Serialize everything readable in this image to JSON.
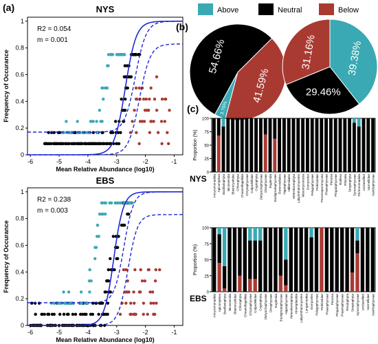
{
  "panel_labels": {
    "a": "(a)",
    "b": "(b)",
    "c": "(c)"
  },
  "colors": {
    "above": "#3aa9b4",
    "neutral": "#000000",
    "below": "#a93a32",
    "fit": "#1c26d6"
  },
  "legend": [
    {
      "key": "above",
      "label": "Above"
    },
    {
      "key": "neutral",
      "label": "Neutral"
    },
    {
      "key": "below",
      "label": "Below"
    }
  ],
  "chart_data": [
    {
      "type": "scatter",
      "title": "NYS",
      "xlabel": "Mean Relative Abundance (log10)",
      "ylabel": "Frequency of Occurance",
      "xlim": [
        -6.1,
        -0.7
      ],
      "ylim": [
        0,
        1.03
      ],
      "xticks": [
        -6,
        -5,
        -4,
        -3,
        -2,
        -1
      ],
      "yticks": [
        0,
        0.2,
        0.4,
        0.6,
        0.8,
        1
      ],
      "annotations": [
        "R2 = 0.054",
        "m = 0.001"
      ],
      "fit": {
        "center": -2.7,
        "slope": 2.3,
        "lower_band": 0.17,
        "upper_band": 0.83,
        "band_shift": 0.35
      },
      "point_summary": [
        {
          "class": "neutral",
          "x_range": [
            -5.5,
            -2.2
          ],
          "y_range": [
            0.05,
            0.75
          ]
        },
        {
          "class": "above",
          "x_range": [
            -4.9,
            -2.7
          ],
          "y_range": [
            0.15,
            0.72
          ]
        },
        {
          "class": "below",
          "x_range": [
            -2.6,
            -1.1
          ],
          "y_range": [
            0.08,
            0.55
          ]
        }
      ]
    },
    {
      "type": "scatter",
      "title": "EBS",
      "xlabel": "Mean Relative Abundance (log10)",
      "ylabel": "Frequency of Occurance",
      "xlim": [
        -6.1,
        -0.7
      ],
      "ylim": [
        0,
        1.03
      ],
      "xticks": [
        -6,
        -5,
        -4,
        -3,
        -2,
        -1
      ],
      "yticks": [
        0,
        0.2,
        0.4,
        0.6,
        0.8,
        1
      ],
      "annotations": [
        "R2 = 0.238",
        "m = 0.003"
      ],
      "fit": {
        "center": -3.1,
        "slope": 2.6,
        "lower_band": 0.17,
        "upper_band": 0.83,
        "band_shift": 0.35
      },
      "point_summary": [
        {
          "class": "neutral",
          "x_range": [
            -6.0,
            -2.4
          ],
          "y_range": [
            0.02,
            0.95
          ]
        },
        {
          "class": "above",
          "x_range": [
            -5.3,
            -2.4
          ],
          "y_range": [
            0.2,
            0.9
          ]
        },
        {
          "class": "below",
          "x_range": [
            -2.9,
            -1.5
          ],
          "y_range": [
            0.04,
            0.45
          ]
        }
      ]
    },
    {
      "type": "pie",
      "title": "NYS",
      "categories": [
        "Above",
        "Neutral",
        "Below"
      ],
      "values": [
        3.75,
        54.66,
        41.59
      ],
      "labels": [
        "3.75%",
        "54.66%",
        "41.59%"
      ]
    },
    {
      "type": "pie",
      "title": "EBS",
      "categories": [
        "Above",
        "Neutral",
        "Below"
      ],
      "values": [
        39.38,
        29.46,
        31.16
      ],
      "labels": [
        "39.38%",
        "29.46%",
        "31.16%"
      ]
    },
    {
      "type": "bar",
      "title": "NYS",
      "stacked": true,
      "ylabel": "Proportion (%)",
      "yticks": [
        0,
        25,
        50,
        75,
        100
      ],
      "categories": [
        "Ancyromonadida",
        "Apicomplexa",
        "Bacillariophyta",
        "Bicosoecida",
        "Blastocystidae",
        "Chlorophyta",
        "Choanoflagellida",
        "Chrysophyceae",
        "Colpodellidae",
        "Cryptophyta",
        "Dictyochophyceae",
        "Dinophyceae",
        "Euglenida",
        "Eustigmatophyceae",
        "Florenciellales",
        "Haptophyceae",
        "Hibberdiales",
        "Heterokontophyta",
        "Labyrinthulomycetes",
        "Mesomycetozoa",
        "Oomycetes",
        "Pelagophyceae",
        "Perkinsidae",
        "Peronosporomycota",
        "Phaeophyceae",
        "Picozoa",
        "Pinguiophyceae",
        "Rotifera",
        "Rhizaria",
        "Streptophyta",
        "Synurophyceae",
        "Trichomonadida",
        "unclassified",
        "Vannellidae",
        "Xanthophyceae"
      ],
      "series": [
        {
          "name": "Below",
          "values": [
            0,
            68,
            0,
            0,
            0,
            0,
            0,
            0,
            0,
            0,
            0,
            70,
            0,
            62,
            0,
            0,
            0,
            0,
            0,
            0,
            0,
            0,
            0,
            0,
            0,
            0,
            0,
            0,
            0,
            0,
            0,
            0,
            0,
            0,
            0
          ]
        },
        {
          "name": "Neutral",
          "values": [
            100,
            32,
            85,
            100,
            100,
            100,
            100,
            100,
            100,
            100,
            100,
            30,
            100,
            38,
            100,
            100,
            100,
            100,
            100,
            100,
            100,
            100,
            100,
            100,
            100,
            100,
            100,
            100,
            100,
            100,
            92,
            85,
            100,
            100,
            100
          ]
        },
        {
          "name": "Above",
          "values": [
            0,
            0,
            15,
            0,
            0,
            0,
            0,
            0,
            0,
            0,
            0,
            0,
            0,
            0,
            0,
            0,
            0,
            0,
            0,
            0,
            0,
            0,
            0,
            0,
            0,
            0,
            0,
            0,
            0,
            0,
            8,
            15,
            0,
            0,
            0
          ]
        }
      ]
    },
    {
      "type": "bar",
      "title": "EBS",
      "stacked": true,
      "ylabel": "Proportion (%)",
      "yticks": [
        0,
        25,
        50,
        75,
        100
      ],
      "categories": [
        "Ancyromonadida",
        "Apicomplexa",
        "Bacillariophyta",
        "Bicosoecida",
        "Blastocystidae",
        "Chlorophyta",
        "Choanoflagellida",
        "Chrysophyceae",
        "Colpodellidae",
        "Cryptophyta",
        "Dictyochophyceae",
        "Dinophyceae",
        "Euglenida",
        "Eustigmatophyceae",
        "Haptophyceae",
        "Heterokontophyta",
        "Kinetoplastida",
        "Labyrinthulomycetes",
        "Longamoebia",
        "Oomycetes",
        "Pelagophyceae",
        "Perkinsidae",
        "Phaeophyceae",
        "Picozoa",
        "Pinguiophyceae",
        "Prasinophyceae",
        "Rhodophyta",
        "Streptophyta",
        "Synurophyceae",
        "unclassified",
        "Vannellidae",
        "Xanthophyceae"
      ],
      "series": [
        {
          "name": "Below",
          "values": [
            0,
            45,
            5,
            0,
            0,
            25,
            0,
            20,
            20,
            0,
            0,
            0,
            0,
            25,
            10,
            0,
            0,
            0,
            0,
            0,
            0,
            100,
            0,
            0,
            0,
            0,
            0,
            30,
            60,
            0,
            0,
            0
          ]
        },
        {
          "name": "Neutral",
          "values": [
            100,
            45,
            35,
            100,
            100,
            75,
            100,
            60,
            60,
            80,
            100,
            100,
            100,
            75,
            40,
            100,
            100,
            100,
            100,
            85,
            100,
            0,
            100,
            100,
            100,
            100,
            100,
            70,
            20,
            100,
            100,
            100
          ]
        },
        {
          "name": "Above",
          "values": [
            0,
            10,
            60,
            0,
            0,
            0,
            0,
            20,
            20,
            20,
            0,
            0,
            0,
            0,
            50,
            0,
            0,
            0,
            0,
            15,
            0,
            0,
            0,
            0,
            0,
            0,
            0,
            0,
            20,
            0,
            0,
            0
          ]
        }
      ]
    }
  ]
}
